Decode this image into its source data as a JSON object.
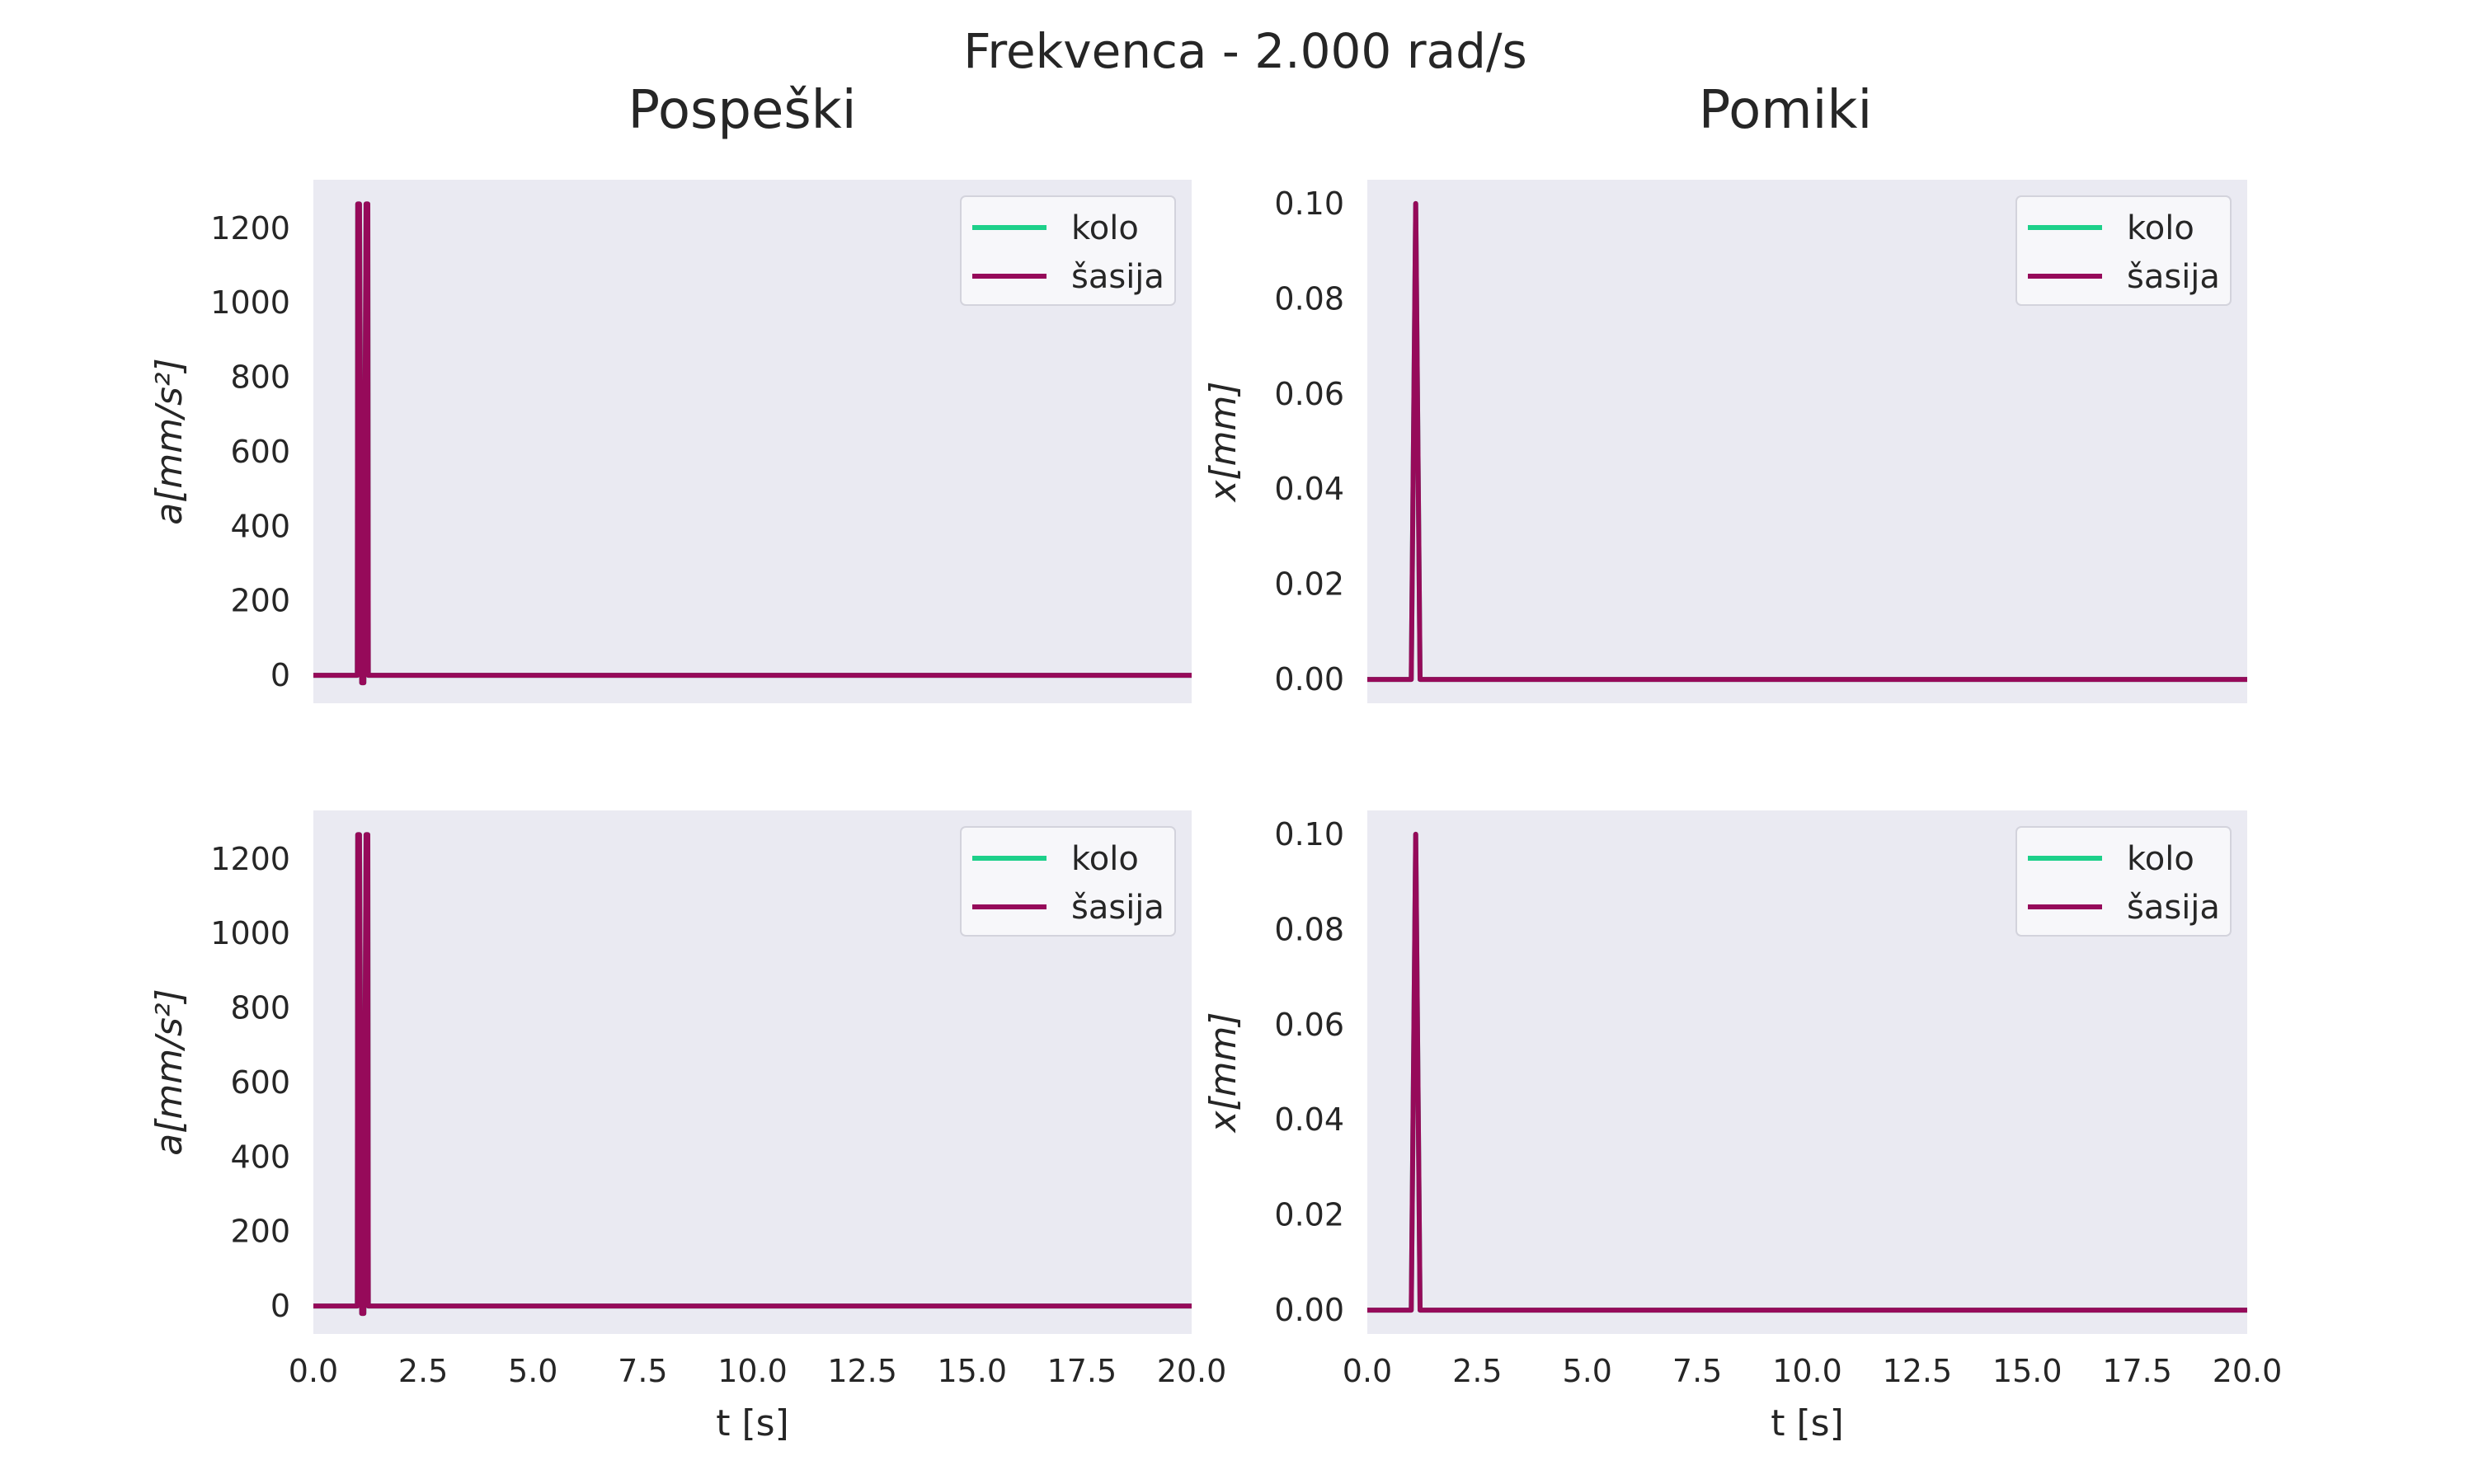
{
  "suptitle": "Frekvenca - 2.000 rad/s",
  "column_titles": [
    "Pospeški",
    "Pomiki"
  ],
  "colors": {
    "kolo": "#1dd08a",
    "sasija": "#960a5a",
    "panel_bg": "#eaeaf2"
  },
  "chart_data": [
    {
      "type": "line",
      "panel": "top-left",
      "ylabel": "a[mm/s²]",
      "xlabel": "",
      "xlim": [
        0,
        20
      ],
      "ylim": [
        -75,
        1330
      ],
      "xticks": [
        0,
        2.5,
        5,
        7.5,
        10,
        12.5,
        15,
        17.5,
        20
      ],
      "xtick_labels_visible": false,
      "yticks": [
        0,
        200,
        400,
        600,
        800,
        1000,
        1200
      ],
      "ytick_labels": [
        "0",
        "200",
        "400",
        "600",
        "800",
        "1000",
        "1200"
      ],
      "legend": "top-right",
      "grid": false,
      "series": [
        {
          "name": "kolo",
          "color": "#1dd08a",
          "x": [
            0,
            1.0,
            1.01,
            1.05,
            1.1,
            1.15,
            1.2,
            1.24,
            1.25,
            1.3,
            20
          ],
          "y": [
            0,
            0,
            1265,
            1265,
            -20,
            -20,
            1265,
            1265,
            0,
            0,
            0
          ]
        },
        {
          "name": "šasija",
          "color": "#960a5a",
          "x": [
            0,
            1.0,
            1.01,
            1.05,
            1.1,
            1.15,
            1.2,
            1.24,
            1.25,
            1.3,
            20
          ],
          "y": [
            0,
            0,
            1265,
            1265,
            -20,
            -20,
            1265,
            1265,
            0,
            0,
            0
          ]
        }
      ]
    },
    {
      "type": "line",
      "panel": "top-right",
      "ylabel": "x[mm]",
      "xlabel": "",
      "xlim": [
        0,
        20
      ],
      "ylim": [
        -0.005,
        0.105
      ],
      "xticks": [
        0,
        2.5,
        5,
        7.5,
        10,
        12.5,
        15,
        17.5,
        20
      ],
      "xtick_labels_visible": false,
      "yticks": [
        0,
        0.02,
        0.04,
        0.06,
        0.08,
        0.1
      ],
      "ytick_labels": [
        "0.00",
        "0.02",
        "0.04",
        "0.06",
        "0.08",
        "0.10"
      ],
      "legend": "top-right",
      "grid": false,
      "series": [
        {
          "name": "kolo",
          "color": "#1dd08a",
          "x": [
            0,
            1.0,
            1.1,
            1.2,
            20
          ],
          "y": [
            0,
            0,
            0.1,
            0,
            0
          ]
        },
        {
          "name": "šasija",
          "color": "#960a5a",
          "x": [
            0,
            1.0,
            1.1,
            1.2,
            20
          ],
          "y": [
            0,
            0,
            0.1,
            0,
            0
          ]
        }
      ]
    },
    {
      "type": "line",
      "panel": "bottom-left",
      "ylabel": "a[mm/s²]",
      "xlabel": "t [s]",
      "xlim": [
        0,
        20
      ],
      "ylim": [
        -75,
        1330
      ],
      "xticks": [
        0,
        2.5,
        5,
        7.5,
        10,
        12.5,
        15,
        17.5,
        20
      ],
      "xtick_labels": [
        "0.0",
        "2.5",
        "5.0",
        "7.5",
        "10.0",
        "12.5",
        "15.0",
        "17.5",
        "20.0"
      ],
      "xtick_labels_visible": true,
      "yticks": [
        0,
        200,
        400,
        600,
        800,
        1000,
        1200
      ],
      "ytick_labels": [
        "0",
        "200",
        "400",
        "600",
        "800",
        "1000",
        "1200"
      ],
      "legend": "top-right",
      "grid": false,
      "series": [
        {
          "name": "kolo",
          "color": "#1dd08a",
          "x": [
            0,
            1.0,
            1.01,
            1.05,
            1.1,
            1.15,
            1.2,
            1.24,
            1.25,
            1.3,
            20
          ],
          "y": [
            0,
            0,
            1265,
            1265,
            -20,
            -20,
            1265,
            1265,
            0,
            0,
            0
          ]
        },
        {
          "name": "šasija",
          "color": "#960a5a",
          "x": [
            0,
            1.0,
            1.01,
            1.05,
            1.1,
            1.15,
            1.2,
            1.24,
            1.25,
            1.3,
            20
          ],
          "y": [
            0,
            0,
            1265,
            1265,
            -20,
            -20,
            1265,
            1265,
            0,
            0,
            0
          ]
        }
      ]
    },
    {
      "type": "line",
      "panel": "bottom-right",
      "ylabel": "x[mm]",
      "xlabel": "t [s]",
      "xlim": [
        0,
        20
      ],
      "ylim": [
        -0.005,
        0.105
      ],
      "xticks": [
        0,
        2.5,
        5,
        7.5,
        10,
        12.5,
        15,
        17.5,
        20
      ],
      "xtick_labels": [
        "0.0",
        "2.5",
        "5.0",
        "7.5",
        "10.0",
        "12.5",
        "15.0",
        "17.5",
        "20.0"
      ],
      "xtick_labels_visible": true,
      "yticks": [
        0,
        0.02,
        0.04,
        0.06,
        0.08,
        0.1
      ],
      "ytick_labels": [
        "0.00",
        "0.02",
        "0.04",
        "0.06",
        "0.08",
        "0.10"
      ],
      "legend": "top-right",
      "grid": false,
      "series": [
        {
          "name": "kolo",
          "color": "#1dd08a",
          "x": [
            0,
            1.0,
            1.1,
            1.2,
            20
          ],
          "y": [
            0,
            0,
            0.1,
            0,
            0
          ]
        },
        {
          "name": "šasija",
          "color": "#960a5a",
          "x": [
            0,
            1.0,
            1.1,
            1.2,
            20
          ],
          "y": [
            0,
            0,
            0.1,
            0,
            0
          ]
        }
      ]
    }
  ]
}
